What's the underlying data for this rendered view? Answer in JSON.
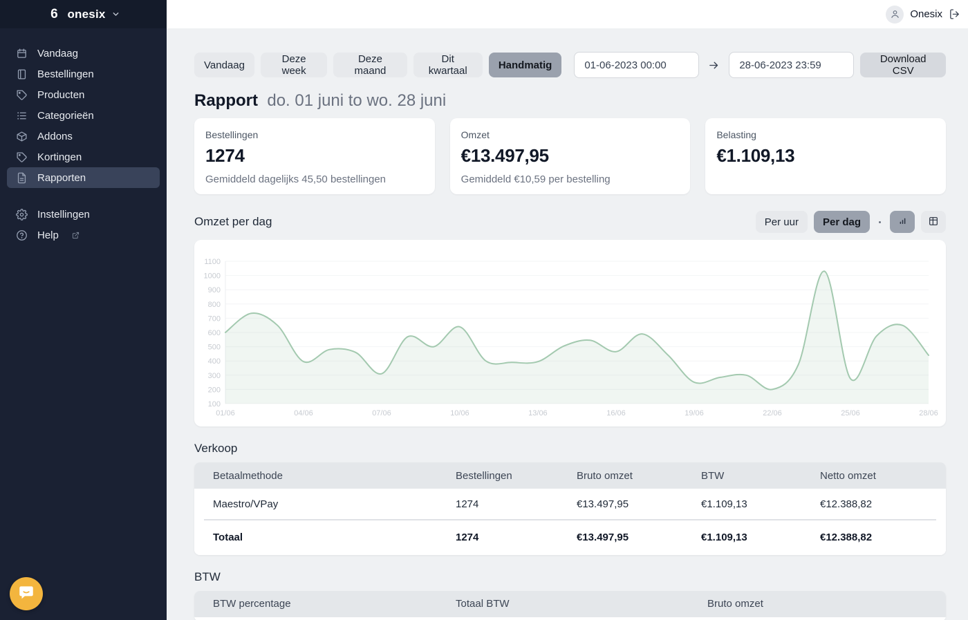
{
  "brand": {
    "name": "onesix"
  },
  "header": {
    "user_name": "Onesix"
  },
  "sidebar": {
    "items": [
      {
        "label": "Vandaag",
        "icon": "calendar-icon"
      },
      {
        "label": "Bestellingen",
        "icon": "book-icon"
      },
      {
        "label": "Producten",
        "icon": "tag-icon"
      },
      {
        "label": "Categorieën",
        "icon": "list-icon"
      },
      {
        "label": "Addons",
        "icon": "box-icon"
      },
      {
        "label": "Kortingen",
        "icon": "tag-icon"
      },
      {
        "label": "Rapporten",
        "icon": "document-icon",
        "active": true
      }
    ],
    "footer_items": [
      {
        "label": "Instellingen",
        "icon": "gear-icon"
      },
      {
        "label": "Help",
        "icon": "help-icon",
        "external": true
      }
    ]
  },
  "filters": {
    "presets": [
      "Vandaag",
      "Deze week",
      "Deze maand",
      "Dit kwartaal",
      "Handmatig"
    ],
    "active_preset": "Handmatig",
    "date_from": "01-06-2023 00:00",
    "date_to": "28-06-2023 23:59",
    "download_label": "Download CSV"
  },
  "report": {
    "title": "Rapport",
    "range_text": "do. 01 juni to wo. 28 juni"
  },
  "stats": [
    {
      "label": "Bestellingen",
      "value": "1274",
      "subtext": "Gemiddeld dagelijks 45,50 bestellingen"
    },
    {
      "label": "Omzet",
      "value": "€13.497,95",
      "subtext": "Gemiddeld €10,59 per bestelling"
    },
    {
      "label": "Belasting",
      "value": "€1.109,13",
      "subtext": ""
    }
  ],
  "chart_section": {
    "heading": "Omzet per dag",
    "modes": [
      "Per uur",
      "Per dag"
    ],
    "active_mode": "Per dag"
  },
  "chart_data": {
    "type": "area",
    "title": "Omzet per dag",
    "x_unit": "day of June 2023",
    "values": [
      600,
      735,
      650,
      395,
      480,
      460,
      310,
      570,
      500,
      640,
      400,
      390,
      395,
      505,
      545,
      465,
      590,
      440,
      250,
      285,
      300,
      200,
      375,
      1030,
      275,
      575,
      650,
      440
    ],
    "xticks": [
      "01/06",
      "04/06",
      "07/06",
      "10/06",
      "13/06",
      "16/06",
      "19/06",
      "22/06",
      "25/06",
      "28/06"
    ],
    "xtick_step": 3,
    "yticks": [
      1100,
      1000,
      900,
      800,
      700,
      600,
      500,
      400,
      300,
      200,
      100
    ],
    "ylim": [
      100,
      1100
    ],
    "grid": true,
    "legend": "none",
    "line_color": "#a3c9af",
    "fill_color": "rgba(163,201,175,0.16)"
  },
  "verkoop": {
    "title": "Verkoop",
    "headers": [
      "Betaalmethode",
      "Bestellingen",
      "Bruto omzet",
      "BTW",
      "Netto omzet"
    ],
    "rows": [
      [
        "Maestro/VPay",
        "1274",
        "€13.497,95",
        "€1.109,13",
        "€12.388,82"
      ]
    ],
    "total": [
      "Totaal",
      "1274",
      "€13.497,95",
      "€1.109,13",
      "€12.388,82"
    ]
  },
  "btw": {
    "title": "BTW",
    "headers": [
      "BTW percentage",
      "Totaal BTW",
      "Bruto omzet"
    ]
  },
  "colors": {
    "sidebar_bg": "#1a2133",
    "active_nav_bg": "#39435a",
    "selected_toggle_bg": "#9aa1ad",
    "chart_line": "#a3c9af",
    "chat_bubble": "#f3b53e"
  }
}
